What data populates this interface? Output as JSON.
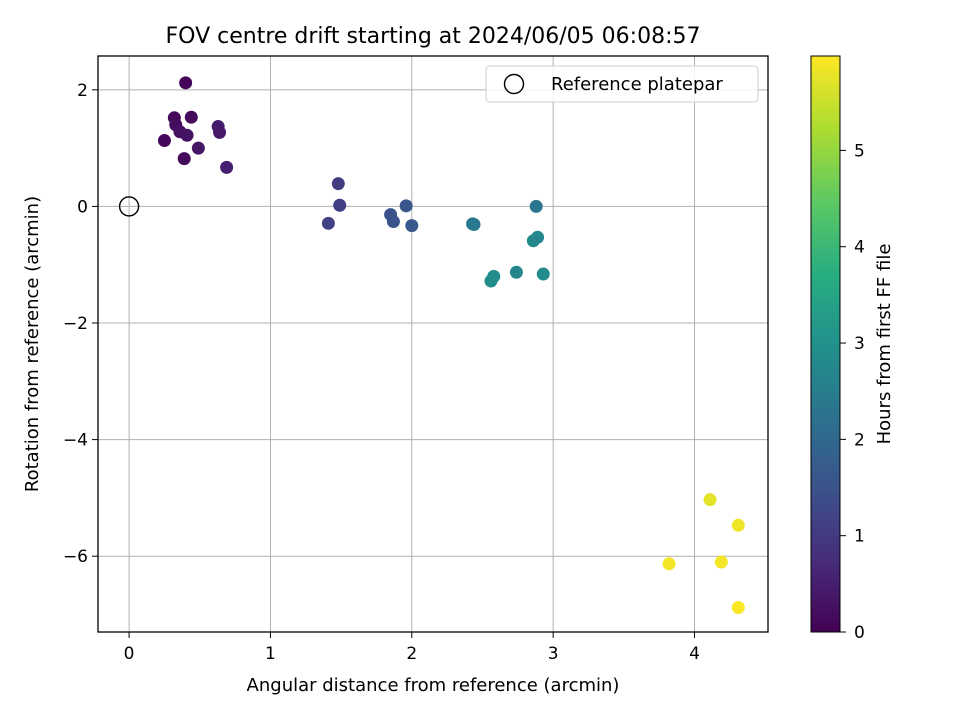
{
  "chart_data": {
    "type": "scatter",
    "title": "FOV centre drift starting at 2024/06/05 06:08:57",
    "xlabel": "Angular distance from reference (arcmin)",
    "ylabel": "Rotation from reference (arcmin)",
    "xlim": [
      -0.22,
      4.52
    ],
    "ylim": [
      -7.3,
      2.58
    ],
    "xticks": [
      0,
      1,
      2,
      3,
      4
    ],
    "xtick_labels": [
      "0",
      "1",
      "2",
      "3",
      "4"
    ],
    "yticks": [
      2,
      0,
      -2,
      -4,
      -6
    ],
    "ytick_labels": [
      "2",
      "0",
      "−2",
      "−4",
      "−6"
    ],
    "grid": true,
    "legend": {
      "placement": "top-right",
      "entries": [
        "Reference platepar"
      ]
    },
    "reference_point": {
      "x": 0,
      "y": 0,
      "label": "Reference platepar"
    },
    "colorbar": {
      "label": "Hours from first FF file",
      "range": [
        0,
        5.98
      ],
      "ticks": [
        0,
        1,
        2,
        3,
        4,
        5
      ],
      "tick_labels": [
        "0",
        "1",
        "2",
        "3",
        "4",
        "5"
      ],
      "colormap": "viridis"
    },
    "points": [
      {
        "x": 0.4,
        "y": 2.12,
        "c": 0.05
      },
      {
        "x": 0.32,
        "y": 1.52,
        "c": 0.1
      },
      {
        "x": 0.44,
        "y": 1.53,
        "c": 0.15
      },
      {
        "x": 0.33,
        "y": 1.4,
        "c": 0.2
      },
      {
        "x": 0.36,
        "y": 1.28,
        "c": 0.25
      },
      {
        "x": 0.41,
        "y": 1.22,
        "c": 0.3
      },
      {
        "x": 0.25,
        "y": 1.13,
        "c": 0.1
      },
      {
        "x": 0.39,
        "y": 0.82,
        "c": 0.15
      },
      {
        "x": 0.63,
        "y": 1.37,
        "c": 0.45
      },
      {
        "x": 0.64,
        "y": 1.27,
        "c": 0.4
      },
      {
        "x": 0.49,
        "y": 1.0,
        "c": 0.35
      },
      {
        "x": 0.69,
        "y": 0.67,
        "c": 0.5
      },
      {
        "x": 1.48,
        "y": 0.39,
        "c": 1.05
      },
      {
        "x": 1.49,
        "y": 0.02,
        "c": 1.1
      },
      {
        "x": 1.41,
        "y": -0.29,
        "c": 1.15
      },
      {
        "x": 1.85,
        "y": -0.14,
        "c": 1.5
      },
      {
        "x": 1.87,
        "y": -0.26,
        "c": 1.55
      },
      {
        "x": 1.96,
        "y": 0.01,
        "c": 1.6
      },
      {
        "x": 2.0,
        "y": -0.33,
        "c": 1.65
      },
      {
        "x": 2.43,
        "y": -0.3,
        "c": 2.3
      },
      {
        "x": 2.44,
        "y": -0.31,
        "c": 2.4
      },
      {
        "x": 2.88,
        "y": 0.0,
        "c": 2.35
      },
      {
        "x": 2.86,
        "y": -0.59,
        "c": 2.8
      },
      {
        "x": 2.89,
        "y": -0.53,
        "c": 2.75
      },
      {
        "x": 2.74,
        "y": -1.13,
        "c": 2.7
      },
      {
        "x": 2.93,
        "y": -1.16,
        "c": 2.85
      },
      {
        "x": 2.56,
        "y": -1.28,
        "c": 2.95
      },
      {
        "x": 2.58,
        "y": -1.2,
        "c": 2.9
      },
      {
        "x": 4.11,
        "y": -5.03,
        "c": 5.75
      },
      {
        "x": 4.31,
        "y": -5.47,
        "c": 5.85
      },
      {
        "x": 3.82,
        "y": -6.13,
        "c": 5.9
      },
      {
        "x": 4.19,
        "y": -6.1,
        "c": 5.88
      },
      {
        "x": 4.31,
        "y": -6.88,
        "c": 5.95
      }
    ]
  }
}
